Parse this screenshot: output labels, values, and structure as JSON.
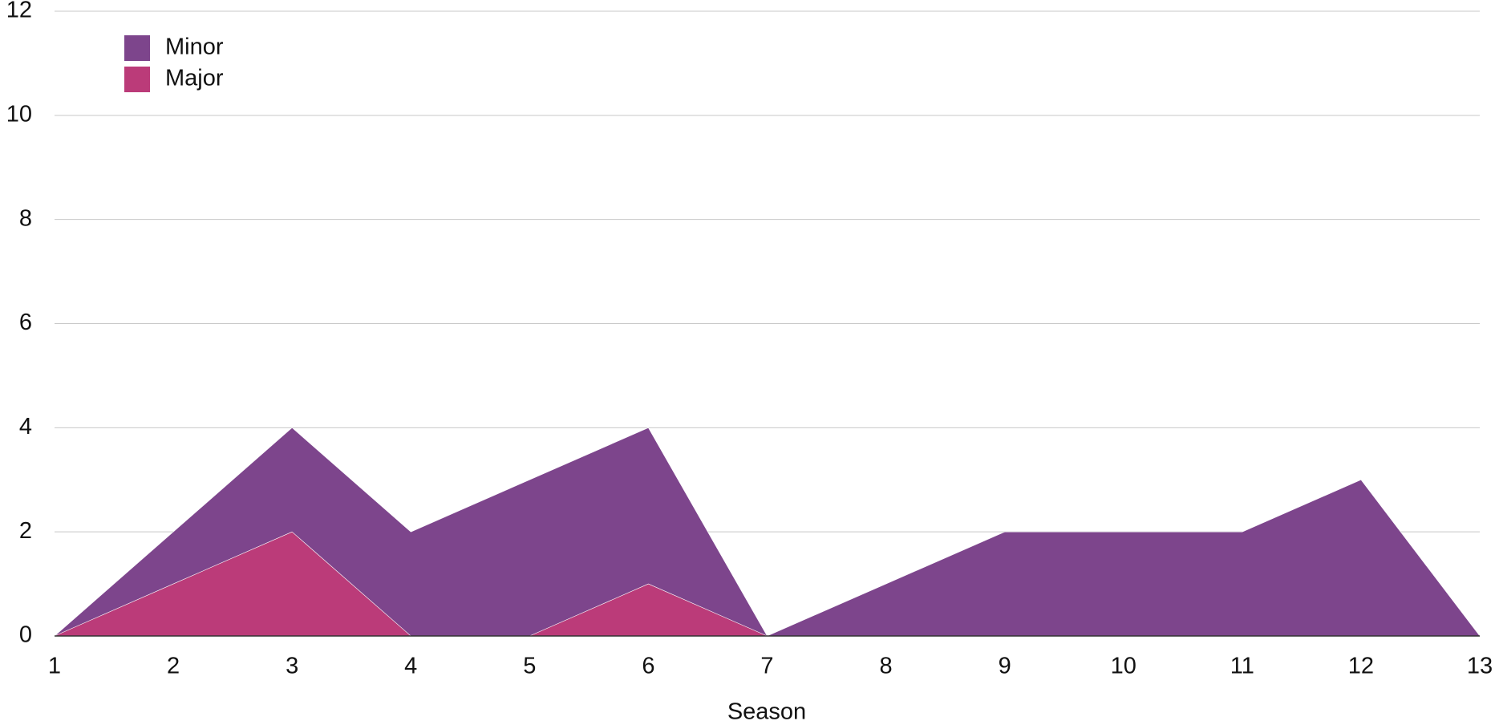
{
  "chart_data": {
    "type": "area",
    "x_label": "Season",
    "x": [
      1,
      2,
      3,
      4,
      5,
      6,
      7,
      8,
      9,
      10,
      11,
      12,
      13
    ],
    "series": [
      {
        "name": "Minor",
        "color": "#7d458c",
        "values": [
          0,
          2,
          4,
          2,
          3,
          4,
          0,
          1,
          2,
          2,
          2,
          3,
          0
        ]
      },
      {
        "name": "Major",
        "color": "#bb3b79",
        "values": [
          0,
          1,
          2,
          0,
          0,
          1,
          0,
          0,
          0,
          0,
          0,
          0,
          0
        ]
      }
    ],
    "xlim": [
      1,
      13
    ],
    "xticks": [
      1,
      2,
      3,
      4,
      5,
      6,
      7,
      8,
      9,
      10,
      11,
      12,
      13
    ],
    "ylim": [
      0,
      12
    ],
    "yticks": [
      0,
      2,
      4,
      6,
      8,
      10,
      12
    ],
    "grid": true,
    "legend": "top-left"
  }
}
